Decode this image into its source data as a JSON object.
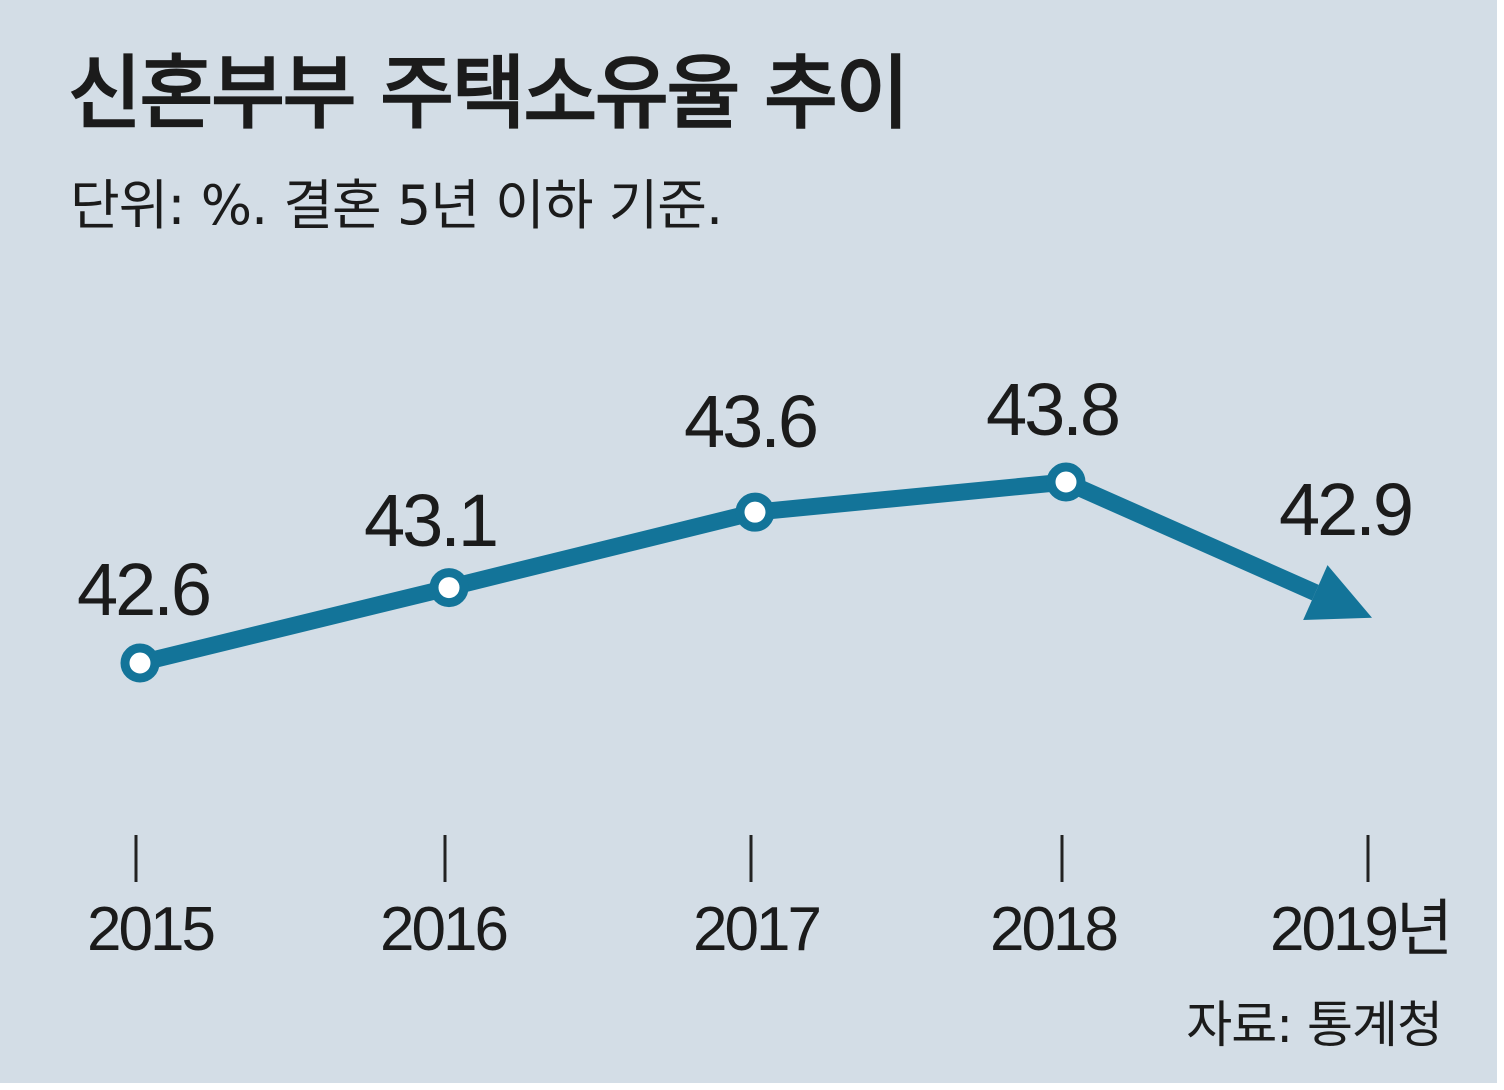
{
  "chart_data": {
    "type": "line",
    "title": "신혼부부 주택소유율 추이",
    "subtitle": "단위: %. 결혼 5년 이하 기준.",
    "source": "자료: 통계청",
    "categories": [
      "2015",
      "2016",
      "2017",
      "2018",
      "2019년"
    ],
    "series": [
      {
        "values": [
          42.6,
          43.1,
          43.6,
          43.8,
          42.9
        ],
        "value_labels": [
          "42.6",
          "43.1",
          "43.6",
          "43.8",
          "42.9"
        ],
        "color": "#137499"
      }
    ],
    "last_point_style": "arrow",
    "grid": false,
    "background": "#d3dde6"
  }
}
